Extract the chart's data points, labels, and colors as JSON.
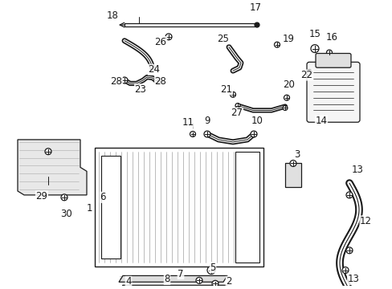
{
  "background_color": "#ffffff",
  "fig_width": 4.89,
  "fig_height": 3.6,
  "dpi": 100,
  "line_color": "#1a1a1a",
  "label_fontsize": 8.5
}
